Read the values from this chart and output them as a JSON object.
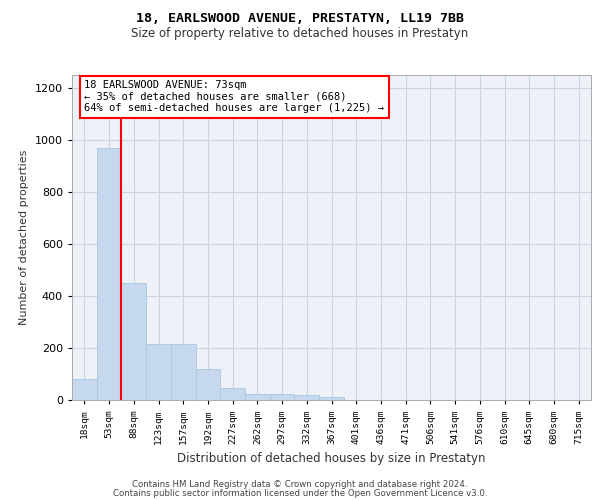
{
  "title1": "18, EARLSWOOD AVENUE, PRESTATYN, LL19 7BB",
  "title2": "Size of property relative to detached houses in Prestatyn",
  "xlabel": "Distribution of detached houses by size in Prestatyn",
  "ylabel": "Number of detached properties",
  "categories": [
    "18sqm",
    "53sqm",
    "88sqm",
    "123sqm",
    "157sqm",
    "192sqm",
    "227sqm",
    "262sqm",
    "297sqm",
    "332sqm",
    "367sqm",
    "401sqm",
    "436sqm",
    "471sqm",
    "506sqm",
    "541sqm",
    "576sqm",
    "610sqm",
    "645sqm",
    "680sqm",
    "715sqm"
  ],
  "values": [
    80,
    970,
    450,
    215,
    215,
    120,
    48,
    25,
    22,
    18,
    10,
    0,
    0,
    0,
    0,
    0,
    0,
    0,
    0,
    0,
    0
  ],
  "bar_color": "#c5d8ed",
  "bar_edge_color": "#a8c8e0",
  "grid_color": "#c8d4e3",
  "bg_color": "#eef2f8",
  "annotation_title": "18 EARLSWOOD AVENUE: 73sqm",
  "annotation_line1": "← 35% of detached houses are smaller (668)",
  "annotation_line2": "64% of semi-detached houses are larger (1,225) →",
  "ylim": [
    0,
    1250
  ],
  "yticks": [
    0,
    200,
    400,
    600,
    800,
    1000,
    1200
  ],
  "footer1": "Contains HM Land Registry data © Crown copyright and database right 2024.",
  "footer2": "Contains public sector information licensed under the Open Government Licence v3.0."
}
